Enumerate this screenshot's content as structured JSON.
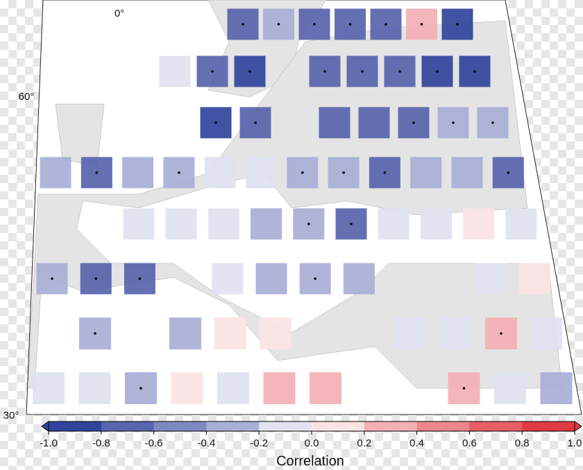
{
  "map": {
    "lat_labels": [
      "60°",
      "30°"
    ],
    "lon_labels": [
      "0°"
    ]
  },
  "grid_rows": [
    {
      "values": [
        -0.7,
        -0.3,
        -0.7,
        -0.7,
        -0.7,
        0.3,
        -0.9
      ],
      "significant": [
        true,
        true,
        true,
        true,
        true,
        true,
        true
      ]
    },
    {
      "values": [
        -0.1,
        -0.7,
        -0.9,
        null,
        -0.7,
        -0.7,
        -0.7,
        -0.9,
        -0.9
      ],
      "significant": [
        false,
        true,
        true,
        false,
        true,
        true,
        true,
        true,
        true
      ]
    },
    {
      "values": [
        -0.9,
        -0.7,
        null,
        -0.7,
        -0.7,
        -0.7,
        -0.3,
        -0.3
      ],
      "significant": [
        true,
        true,
        false,
        false,
        false,
        true,
        true,
        true
      ]
    },
    {
      "values": [
        -0.3,
        -0.7,
        -0.3,
        -0.3,
        -0.1,
        -0.1,
        -0.3,
        -0.3,
        -0.7,
        -0.3,
        -0.3,
        -0.7
      ],
      "significant": [
        false,
        true,
        false,
        true,
        false,
        false,
        true,
        true,
        true,
        false,
        false,
        true
      ]
    },
    {
      "values": [
        -0.1,
        -0.1,
        -0.1,
        -0.3,
        -0.3,
        -0.7,
        -0.1,
        -0.1,
        0.1,
        -0.1
      ],
      "significant": [
        false,
        false,
        false,
        false,
        true,
        true,
        false,
        false,
        false,
        false
      ]
    },
    {
      "values": [
        -0.3,
        -0.7,
        -0.7,
        null,
        -0.1,
        -0.3,
        -0.3,
        -0.3,
        null,
        null,
        -0.1,
        0.1
      ],
      "significant": [
        true,
        true,
        true,
        false,
        false,
        false,
        true,
        false,
        false,
        false,
        false,
        false
      ]
    },
    {
      "values": [
        -0.3,
        null,
        -0.3,
        0.1,
        0.1,
        null,
        null,
        -0.1,
        -0.1,
        0.3,
        -0.1
      ],
      "significant": [
        true,
        false,
        false,
        false,
        false,
        false,
        false,
        false,
        false,
        true,
        false
      ]
    },
    {
      "values": [
        -0.1,
        -0.1,
        -0.3,
        0.1,
        -0.1,
        0.3,
        0.3,
        null,
        null,
        0.3,
        -0.1,
        -0.3
      ],
      "significant": [
        false,
        false,
        true,
        false,
        false,
        false,
        false,
        false,
        false,
        true,
        false,
        false
      ]
    }
  ],
  "colorbar": {
    "label": "Correlation",
    "range": [
      -1,
      1
    ],
    "ticks": [
      {
        "value": -1,
        "label": "-1.0"
      },
      -0.8,
      -0.6,
      -0.4,
      -0.2,
      {
        "value": 0,
        "label": "0.0"
      },
      0.2,
      0.4,
      0.6,
      0.8,
      {
        "value": 1,
        "label": "1.0"
      }
    ],
    "colors": [
      "#31449b",
      "#5864ad",
      "#7e88c1",
      "#a9aed6",
      "#e0e2f0",
      "#fbe3e5",
      "#f4b0b5",
      "#ee868d",
      "#e85d66",
      "#e03a43"
    ]
  }
}
